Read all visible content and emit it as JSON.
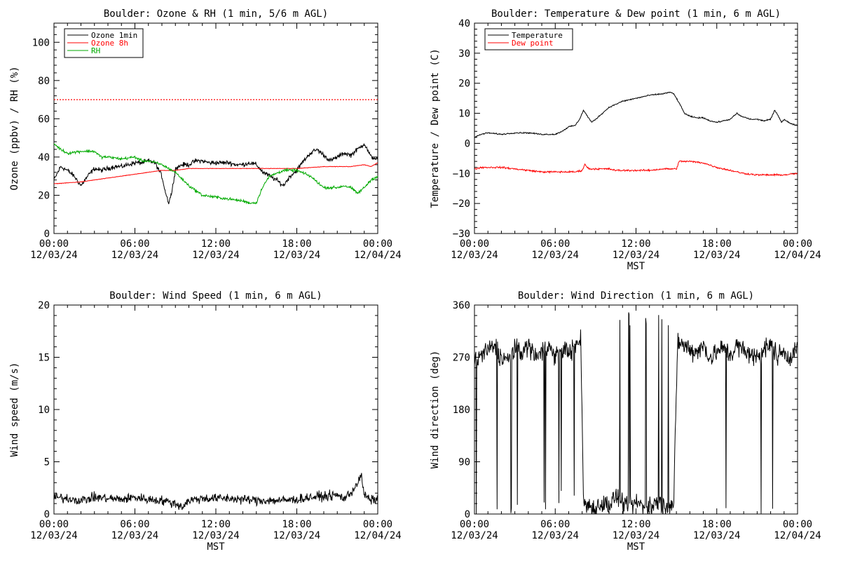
{
  "chart_data": [
    {
      "id": "ozone",
      "type": "line",
      "title": "Boulder: Ozone & RH (1 min, 5/6 m AGL)",
      "xlabel": "",
      "ylabel": "Ozone (ppbv) / RH (%)",
      "xlim": [
        "12/03/24 00:00",
        "12/04/24 00:00"
      ],
      "ylim": [
        0,
        110
      ],
      "yticks": [
        "0",
        "20",
        "40",
        "60",
        "80",
        "100"
      ],
      "xticks": [
        {
          "time": "00:00",
          "date": "12/03/24"
        },
        {
          "time": "06:00",
          "date": "12/03/24"
        },
        {
          "time": "12:00",
          "date": "12/03/24"
        },
        {
          "time": "18:00",
          "date": "12/03/24"
        },
        {
          "time": "00:00",
          "date": "12/04/24"
        }
      ],
      "legend_position": "top-left",
      "legend": [
        "Ozone 1min",
        "Ozone 8h",
        "RH"
      ],
      "reference_lines": [
        {
          "y": 70,
          "color": "#ff0000",
          "style": "dotted"
        }
      ],
      "series": [
        {
          "name": "Ozone 1min",
          "color": "#000000",
          "noise": 1.5,
          "x": [
            0,
            0.5,
            1,
            1.5,
            2,
            2.5,
            3,
            3.5,
            4,
            4.5,
            5,
            5.5,
            6,
            6.5,
            7,
            7.5,
            8,
            8.25,
            8.5,
            8.75,
            9,
            9.5,
            10,
            10.5,
            11,
            11.5,
            12,
            12.5,
            13,
            13.5,
            14,
            14.5,
            15,
            15.5,
            16,
            16.5,
            17,
            17.5,
            18,
            18.5,
            19,
            19.5,
            20,
            20.5,
            21,
            21.5,
            22,
            22.5,
            23,
            23.5,
            24
          ],
          "y": [
            28,
            35,
            33,
            30,
            25,
            30,
            34,
            33,
            34,
            35,
            35,
            36,
            37,
            37,
            38,
            37,
            30,
            22,
            16,
            22,
            34,
            36,
            36,
            38,
            38,
            37,
            37,
            37,
            37,
            36,
            36,
            37,
            36,
            32,
            30,
            28,
            25,
            30,
            33,
            38,
            42,
            44,
            41,
            38,
            40,
            42,
            41,
            44,
            47,
            40,
            39
          ]
        },
        {
          "name": "Ozone 8h",
          "color": "#ff0000",
          "noise": 0.15,
          "x": [
            0,
            2,
            4,
            6,
            7,
            8,
            9,
            10,
            12,
            14,
            16,
            18,
            20,
            22,
            23,
            23.5,
            24
          ],
          "y": [
            26,
            27,
            29,
            31,
            32,
            33,
            33,
            34,
            34,
            34,
            34,
            34,
            35,
            35,
            36,
            35,
            37
          ]
        },
        {
          "name": "RH",
          "color": "#00aa00",
          "noise": 0.9,
          "x": [
            0,
            0.5,
            1,
            2,
            3,
            3.5,
            4,
            5,
            6,
            6.5,
            7,
            7.5,
            8,
            9,
            10,
            11,
            12,
            13,
            14,
            14.5,
            15,
            15.5,
            16,
            17,
            18,
            19,
            20,
            21,
            21.5,
            22,
            22.5,
            23,
            23.5,
            24
          ],
          "y": [
            47,
            44,
            42,
            43,
            43,
            40,
            40,
            39,
            40,
            38,
            38,
            37,
            36,
            32,
            25,
            20,
            19,
            18,
            17,
            16,
            16,
            25,
            30,
            33,
            33,
            30,
            24,
            24,
            25,
            24,
            21,
            24,
            28,
            30
          ]
        }
      ]
    },
    {
      "id": "temp",
      "type": "line",
      "title": "Boulder: Temperature & Dew point (1 min, 6 m AGL)",
      "xlabel": "MST",
      "ylabel": "Temperature / Dew point (C)",
      "xlim": [
        "12/03/24 00:00",
        "12/04/24 00:00"
      ],
      "ylim": [
        -30,
        40
      ],
      "yticks": [
        "−30",
        "−20",
        "−10",
        "0",
        "10",
        "20",
        "30",
        "40"
      ],
      "xticks": [
        {
          "time": "00:00",
          "date": "12/03/24"
        },
        {
          "time": "06:00",
          "date": "12/03/24"
        },
        {
          "time": "12:00",
          "date": "12/03/24"
        },
        {
          "time": "18:00",
          "date": "12/03/24"
        },
        {
          "time": "00:00",
          "date": "12/04/24"
        }
      ],
      "legend_position": "top-left",
      "legend": [
        "Temperature",
        "Dew point"
      ],
      "series": [
        {
          "name": "Temperature",
          "color": "#000000",
          "noise": 0.25,
          "x": [
            0,
            0.5,
            1,
            2,
            3,
            4,
            5,
            6,
            6.5,
            7,
            7.5,
            7.8,
            8.1,
            8.4,
            8.7,
            9,
            9.5,
            10,
            11,
            12,
            13,
            14,
            14.5,
            14.8,
            15.2,
            15.6,
            16,
            16.5,
            17,
            17.5,
            18,
            18.5,
            19,
            19.5,
            19.8,
            20.2,
            20.5,
            21,
            21.5,
            22,
            22.3,
            22.6,
            22.8,
            23,
            23.5,
            24
          ],
          "y": [
            2,
            3,
            3.5,
            3,
            3.5,
            3.5,
            3,
            3,
            4,
            5.5,
            6,
            8,
            11,
            9,
            7,
            8,
            10,
            12,
            14,
            15,
            16,
            16.5,
            17,
            16.5,
            13.5,
            10,
            9,
            8.5,
            8.5,
            7.5,
            7,
            7.5,
            8,
            10,
            9,
            8.5,
            8,
            8,
            7.5,
            8,
            11,
            9,
            7,
            8,
            6.5,
            6
          ]
        },
        {
          "name": "Dew point",
          "color": "#ff0000",
          "noise": 0.35,
          "x": [
            0,
            0.5,
            1,
            2,
            3,
            4,
            5,
            6,
            7,
            7.5,
            8,
            8.2,
            8.5,
            9,
            10,
            10.5,
            11,
            12,
            13,
            14,
            15,
            15.2,
            16,
            17,
            18,
            19,
            20,
            21,
            22,
            23,
            24
          ],
          "y": [
            -8.5,
            -8,
            -8,
            -8,
            -8.5,
            -9,
            -9.5,
            -9.5,
            -9.5,
            -9.5,
            -9,
            -7,
            -8.5,
            -8.5,
            -8.5,
            -9,
            -9,
            -9,
            -9,
            -8.5,
            -8.5,
            -6,
            -6,
            -6.5,
            -8,
            -9,
            -10,
            -10.5,
            -10.5,
            -10.5,
            -10
          ]
        }
      ]
    },
    {
      "id": "wspd",
      "type": "line",
      "title": "Boulder: Wind Speed (1 min, 6 m AGL)",
      "xlabel": "MST",
      "ylabel": "Wind speed (m/s)",
      "xlim": [
        "12/03/24 00:00",
        "12/04/24 00:00"
      ],
      "ylim": [
        0,
        20
      ],
      "yticks": [
        "0",
        "5",
        "10",
        "15",
        "20"
      ],
      "xticks": [
        {
          "time": "00:00",
          "date": "12/03/24"
        },
        {
          "time": "06:00",
          "date": "12/03/24"
        },
        {
          "time": "12:00",
          "date": "12/03/24"
        },
        {
          "time": "18:00",
          "date": "12/03/24"
        },
        {
          "time": "00:00",
          "date": "12/04/24"
        }
      ],
      "series": [
        {
          "name": "",
          "color": "#000000",
          "noise": 0.55,
          "x": [
            0,
            1,
            2,
            3,
            4,
            5,
            6,
            7,
            8,
            9,
            9.5,
            10,
            11,
            12,
            13,
            14,
            15,
            16,
            17,
            18,
            19,
            20,
            21,
            21.5,
            22,
            22.5,
            22.8,
            23,
            23.5,
            24
          ],
          "y": [
            1.6,
            1.5,
            1.3,
            1.6,
            1.5,
            1.4,
            1.6,
            1.4,
            1.3,
            1.0,
            0.7,
            1.3,
            1.5,
            1.5,
            1.5,
            1.4,
            1.3,
            1.3,
            1.3,
            1.4,
            1.6,
            1.7,
            1.8,
            1.5,
            2.0,
            3.0,
            3.6,
            1.8,
            1.3,
            1.5
          ]
        }
      ]
    },
    {
      "id": "wdir",
      "type": "line",
      "title": "Boulder: Wind Direction (1 min, 6 m AGL)",
      "xlabel": "MST",
      "ylabel": "Wind direction (deg)",
      "xlim": [
        "12/03/24 00:00",
        "12/04/24 00:00"
      ],
      "ylim": [
        0,
        360
      ],
      "yticks": [
        "0",
        "90",
        "180",
        "270",
        "360"
      ],
      "xticks": [
        {
          "time": "00:00",
          "date": "12/03/24"
        },
        {
          "time": "06:00",
          "date": "12/03/24"
        },
        {
          "time": "12:00",
          "date": "12/03/24"
        },
        {
          "time": "18:00",
          "date": "12/03/24"
        },
        {
          "time": "00:00",
          "date": "12/04/24"
        }
      ],
      "series": [
        {
          "name": "",
          "color": "#000000",
          "noise": 22,
          "x": [
            0,
            0.5,
            1,
            1.5,
            2,
            2.5,
            3,
            3.5,
            4,
            4.5,
            5,
            5.5,
            6,
            6.5,
            7,
            7.5,
            7.9,
            8.1,
            8.5,
            9,
            9.5,
            10,
            10.5,
            11,
            11.5,
            12,
            12.5,
            13,
            13.5,
            14,
            14.5,
            14.8,
            15.1,
            15.5,
            16,
            16.5,
            17,
            17.5,
            18,
            18.5,
            19,
            19.5,
            20,
            20.5,
            21,
            21.5,
            22,
            22.5,
            23,
            23.5,
            24
          ],
          "y": [
            260,
            275,
            280,
            290,
            270,
            265,
            285,
            280,
            290,
            275,
            280,
            290,
            270,
            285,
            280,
            290,
            300,
            20,
            15,
            10,
            20,
            15,
            30,
            15,
            10,
            20,
            15,
            10,
            20,
            15,
            15,
            20,
            300,
            290,
            285,
            280,
            290,
            270,
            280,
            285,
            275,
            290,
            280,
            275,
            270,
            285,
            290,
            275,
            280,
            270,
            285
          ]
        }
      ]
    }
  ]
}
